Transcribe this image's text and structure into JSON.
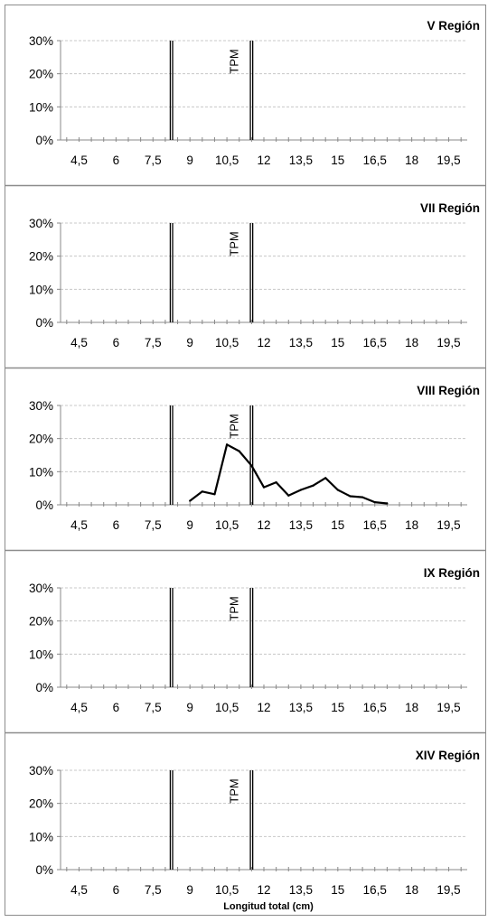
{
  "chart_data": {
    "type": "line",
    "xlabel": "Longitud total (cm)",
    "x_ticks": [
      "4,5",
      "6",
      "7,5",
      "9",
      "10,5",
      "12",
      "13,5",
      "15",
      "16,5",
      "18",
      "19,5"
    ],
    "y_ticks": [
      "0%",
      "10%",
      "20%",
      "30%"
    ],
    "xlim": [
      3.75,
      20.25
    ],
    "ylim": [
      0,
      30
    ],
    "reference_lines": {
      "x": [
        8.25,
        11.5
      ],
      "label": "TPM"
    },
    "grid": true,
    "panels": [
      {
        "title": "V Región",
        "x": [],
        "y": []
      },
      {
        "title": "VII Región",
        "x": [],
        "y": []
      },
      {
        "title": "VIII Región",
        "x": [
          9,
          9.5,
          10,
          10.5,
          11,
          11.5,
          12,
          12.5,
          13,
          13.5,
          14,
          14.5,
          15,
          15.5,
          16,
          16.5,
          17
        ],
        "y": [
          1.2,
          4.0,
          3.2,
          18.2,
          16.2,
          11.8,
          5.3,
          6.8,
          2.8,
          4.5,
          5.8,
          8.1,
          4.5,
          2.6,
          2.3,
          0.8,
          0.4
        ]
      },
      {
        "title": "IX Región",
        "x": [],
        "y": []
      },
      {
        "title": "XIV Región",
        "x": [],
        "y": []
      }
    ]
  }
}
